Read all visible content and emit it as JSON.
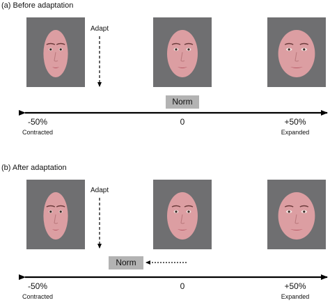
{
  "panels": [
    {
      "label": "(a)  Before adaptation",
      "adapt_label": "Adapt",
      "norm_label": "Norm",
      "ticks": [
        {
          "pct": "-50%",
          "word": "Contracted"
        },
        {
          "pct": "0",
          "word": ""
        },
        {
          "pct": "+50%",
          "word": "Expanded"
        }
      ],
      "faces": [
        {
          "variant": "contracted",
          "distortion_pct": -50
        },
        {
          "variant": "norm",
          "distortion_pct": 0
        },
        {
          "variant": "expanded",
          "distortion_pct": 50
        }
      ]
    },
    {
      "label": "(b)  After adaptation",
      "adapt_label": "Adapt",
      "norm_label": "Norm",
      "ticks": [
        {
          "pct": "-50%",
          "word": "Contracted"
        },
        {
          "pct": "0",
          "word": ""
        },
        {
          "pct": "+50%",
          "word": "Expanded"
        }
      ],
      "faces": [
        {
          "variant": "contracted",
          "distortion_pct": -50
        },
        {
          "variant": "norm",
          "distortion_pct": 0
        },
        {
          "variant": "expanded",
          "distortion_pct": 50
        }
      ]
    }
  ],
  "colors": {
    "photo_bg": "#6f6f71",
    "skin": "#dc9ea2",
    "norm_box": "#b3b3b3",
    "arrow": "#000000"
  },
  "icons": {
    "face": "face-photo",
    "arrow": "double-headed-arrow",
    "adapt_arrow": "dashed-down-arrow",
    "shift_arrow": "dotted-left-arrow"
  }
}
